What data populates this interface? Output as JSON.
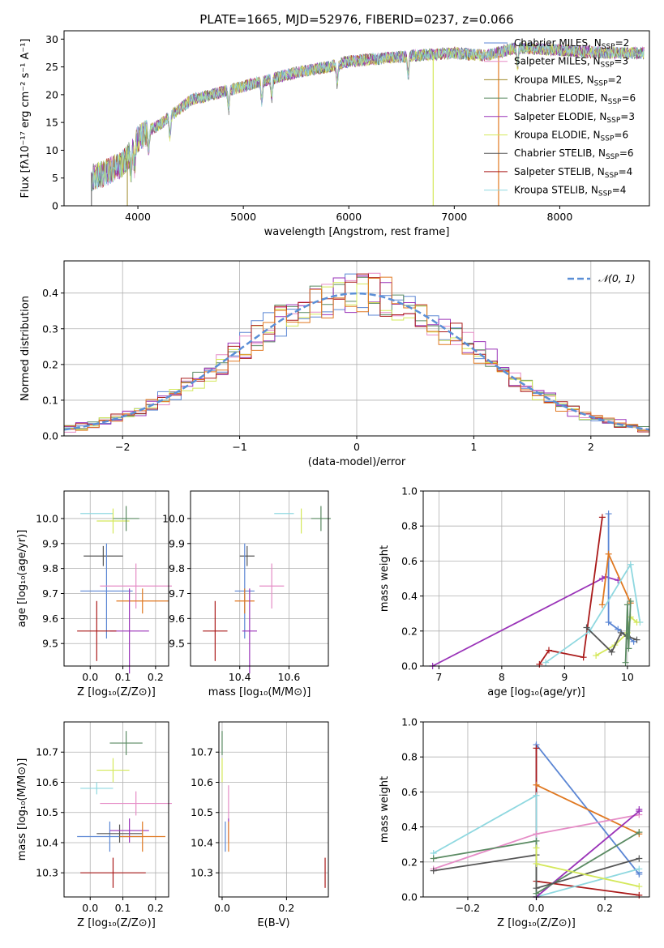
{
  "title": "PLATE=1665, MJD=52976, FIBERID=0237, z=0.066",
  "colors": {
    "chab_miles": "#5b86d4",
    "salp_miles": "#e58cc6",
    "krou_miles": "#a08a2a",
    "chab_elodie": "#5a8a62",
    "salp_elodie": "#9a33b8",
    "krou_elodie": "#d4e85a",
    "chab_stelib": "#555555",
    "salp_stelib": "#aa1a1a",
    "krou_stelib": "#8fd8e0",
    "orange": "#e07820",
    "normal": "#5b8fd6"
  },
  "chart_data": [
    {
      "id": "spectrum",
      "type": "line",
      "title": "PLATE=1665, MJD=52976, FIBERID=0237, z=0.066",
      "xlabel": "wavelength [Angstrom, rest frame]",
      "ylabel": "Flux [fλ10⁻¹⁷ erg cm⁻² s⁻¹ A⁻¹]",
      "xlim": [
        3300,
        8850
      ],
      "ylim": [
        0,
        31.5
      ],
      "xticks": [
        "4000",
        "5000",
        "6000",
        "7000",
        "8000"
      ],
      "yticks": [
        "0",
        "5",
        "10",
        "15",
        "20",
        "25",
        "30"
      ],
      "continuum": [
        [
          3560,
          5
        ],
        [
          3700,
          6
        ],
        [
          3850,
          7.5
        ],
        [
          3950,
          10
        ],
        [
          4000,
          12
        ],
        [
          4100,
          13.5
        ],
        [
          4200,
          14.5
        ],
        [
          4300,
          16
        ],
        [
          4500,
          19
        ],
        [
          4800,
          20.5
        ],
        [
          5000,
          21.5
        ],
        [
          5200,
          22.5
        ],
        [
          5500,
          24
        ],
        [
          5800,
          25
        ],
        [
          6000,
          26
        ],
        [
          6300,
          26.5
        ],
        [
          6600,
          27
        ],
        [
          7000,
          27.5
        ],
        [
          7300,
          27
        ],
        [
          7600,
          28.5
        ],
        [
          8000,
          28
        ],
        [
          8500,
          27.5
        ],
        [
          8800,
          27.5
        ]
      ],
      "absorption_lines": [
        3934,
        3969,
        4102,
        4304,
        4861,
        5175,
        5270,
        5890,
        6563,
        7600
      ],
      "drop_lines": [
        6800,
        7420
      ],
      "legend": [
        {
          "label": "Chabrier MILES, N",
          "sub": "SSP",
          "value": "=2",
          "color_key": "chab_miles"
        },
        {
          "label": "Salpeter MILES, N",
          "sub": "SSP",
          "value": "=3",
          "color_key": "salp_miles"
        },
        {
          "label": "Kroupa MILES, N",
          "sub": "SSP",
          "value": "=2",
          "color_key": "krou_miles"
        },
        {
          "label": "Chabrier ELODIE, N",
          "sub": "SSP",
          "value": "=6",
          "color_key": "chab_elodie"
        },
        {
          "label": "Salpeter ELODIE, N",
          "sub": "SSP",
          "value": "=3",
          "color_key": "salp_elodie"
        },
        {
          "label": "Kroupa ELODIE, N",
          "sub": "SSP",
          "value": "=6",
          "color_key": "krou_elodie"
        },
        {
          "label": "Chabrier STELIB, N",
          "sub": "SSP",
          "value": "=6",
          "color_key": "chab_stelib"
        },
        {
          "label": "Salpeter STELIB, N",
          "sub": "SSP",
          "value": "=4",
          "color_key": "salp_stelib"
        },
        {
          "label": "Kroupa STELIB, N",
          "sub": "SSP",
          "value": "=4",
          "color_key": "krou_stelib"
        }
      ]
    },
    {
      "id": "residuals",
      "type": "histogram",
      "xlabel": "(data-model)/error",
      "ylabel": "Normed distribution",
      "xlim": [
        -2.5,
        2.5
      ],
      "ylim": [
        0,
        0.49
      ],
      "xticks": [
        "−2",
        "−1",
        "0",
        "1",
        "2"
      ],
      "yticks": [
        "0.0",
        "0.1",
        "0.2",
        "0.3",
        "0.4"
      ],
      "bin_width": 0.1,
      "legend": {
        "label": "𝒩(0, 1)"
      },
      "series_colors": [
        "chab_miles",
        "salp_miles",
        "chab_elodie",
        "salp_elodie",
        "krou_elodie",
        "salp_stelib",
        "orange"
      ]
    },
    {
      "id": "age_vs_z",
      "type": "errorbar",
      "xlabel": "Z [log₁₀(Z/Z⊙)]",
      "ylabel": "age  [log₁₀(age/yr)]",
      "xlim": [
        -0.08,
        0.24
      ],
      "ylim": [
        9.41,
        10.11
      ],
      "xticks": [
        "0.0",
        "0.1",
        "0.2"
      ],
      "yticks": [
        "9.5",
        "9.6",
        "9.7",
        "9.8",
        "9.9",
        "10.0"
      ],
      "points": [
        {
          "color_key": "krou_stelib",
          "x": 0.02,
          "xerr": 0.05,
          "y": 10.02,
          "yerr": 0.0
        },
        {
          "color_key": "krou_elodie",
          "x": 0.07,
          "xerr": 0.05,
          "y": 9.99,
          "yerr": 0.05
        },
        {
          "color_key": "chab_elodie",
          "x": 0.11,
          "xerr": 0.04,
          "y": 10.0,
          "yerr": 0.05
        },
        {
          "color_key": "chab_stelib",
          "x": 0.04,
          "xerr": 0.06,
          "y": 9.85,
          "yerr": 0.04
        },
        {
          "color_key": "chab_miles",
          "x": 0.05,
          "xerr": 0.08,
          "y": 9.71,
          "yerr": 0.19
        },
        {
          "color_key": "salp_miles",
          "x": 0.14,
          "xerr": 0.11,
          "y": 9.73,
          "yerr": 0.09
        },
        {
          "color_key": "orange",
          "x": 0.16,
          "xerr": 0.08,
          "y": 9.67,
          "yerr": 0.05
        },
        {
          "color_key": "salp_elodie",
          "x": 0.12,
          "xerr": 0.06,
          "y": 9.55,
          "yerr": 0.17
        },
        {
          "color_key": "salp_stelib",
          "x": 0.02,
          "xerr": 0.06,
          "y": 9.55,
          "yerr": 0.12
        }
      ]
    },
    {
      "id": "age_vs_mass",
      "type": "errorbar",
      "xlabel": "mass [log₁₀(M/M⊙)]",
      "ylabel": "",
      "xlim": [
        10.2,
        10.76
      ],
      "ylim": [
        9.41,
        10.11
      ],
      "xticks": [
        "10.4",
        "10.6"
      ],
      "yticks": [
        "9.5",
        "9.6",
        "9.7",
        "9.8",
        "9.9",
        "10.0"
      ],
      "points": [
        {
          "color_key": "krou_stelib",
          "x": 10.58,
          "xerr": 0.04,
          "y": 10.02,
          "yerr": 0.0
        },
        {
          "color_key": "krou_elodie",
          "x": 10.65,
          "xerr": 0.0,
          "y": 9.99,
          "yerr": 0.05
        },
        {
          "color_key": "chab_elodie",
          "x": 10.73,
          "xerr": 0.04,
          "y": 10.0,
          "yerr": 0.05
        },
        {
          "color_key": "chab_stelib",
          "x": 10.43,
          "xerr": 0.03,
          "y": 9.85,
          "yerr": 0.04
        },
        {
          "color_key": "chab_miles",
          "x": 10.42,
          "xerr": 0.04,
          "y": 9.71,
          "yerr": 0.19
        },
        {
          "color_key": "salp_miles",
          "x": 10.53,
          "xerr": 0.05,
          "y": 9.73,
          "yerr": 0.09
        },
        {
          "color_key": "orange",
          "x": 10.42,
          "xerr": 0.04,
          "y": 9.67,
          "yerr": 0.05
        },
        {
          "color_key": "salp_elodie",
          "x": 10.44,
          "xerr": 0.03,
          "y": 9.55,
          "yerr": 0.17
        },
        {
          "color_key": "salp_stelib",
          "x": 10.3,
          "xerr": 0.05,
          "y": 9.55,
          "yerr": 0.12
        }
      ]
    },
    {
      "id": "weight_vs_age",
      "type": "line",
      "xlabel": "age  [log₁₀(age/yr)]",
      "ylabel": "mass weight",
      "xlim": [
        6.75,
        10.35
      ],
      "ylim": [
        0,
        1.0
      ],
      "xticks": [
        "7",
        "8",
        "9",
        "10"
      ],
      "yticks": [
        "0.0",
        "0.2",
        "0.4",
        "0.6",
        "0.8",
        "1.0"
      ],
      "series": [
        {
          "color_key": "salp_elodie",
          "x": [
            6.9,
            9.6,
            9.65,
            9.85
          ],
          "y": [
            0.0,
            0.5,
            0.51,
            0.49
          ]
        },
        {
          "color_key": "salp_stelib",
          "x": [
            8.6,
            8.75,
            9.3,
            9.6
          ],
          "y": [
            0.01,
            0.09,
            0.05,
            0.85
          ]
        },
        {
          "color_key": "chab_miles",
          "x": [
            9.7,
            9.7,
            9.85,
            10.1
          ],
          "y": [
            0.87,
            0.25,
            0.21,
            0.14
          ]
        },
        {
          "color_key": "orange",
          "x": [
            9.6,
            9.7,
            10.05
          ],
          "y": [
            0.35,
            0.64,
            0.36
          ]
        },
        {
          "color_key": "krou_stelib",
          "x": [
            8.7,
            9.4,
            10.05,
            10.2
          ],
          "y": [
            0.02,
            0.2,
            0.58,
            0.25
          ]
        },
        {
          "color_key": "krou_elodie",
          "x": [
            9.5,
            9.8,
            10.0,
            10.05,
            10.15
          ],
          "y": [
            0.06,
            0.12,
            0.19,
            0.28,
            0.25
          ]
        },
        {
          "color_key": "chab_stelib",
          "x": [
            9.35,
            9.75,
            9.9,
            10.0,
            10.15
          ],
          "y": [
            0.22,
            0.08,
            0.19,
            0.17,
            0.15
          ]
        },
        {
          "color_key": "chab_elodie",
          "x": [
            9.97,
            10.0,
            10.02,
            10.05
          ],
          "y": [
            0.02,
            0.35,
            0.1,
            0.37
          ]
        }
      ]
    },
    {
      "id": "mass_vs_z",
      "type": "errorbar",
      "xlabel": "Z [log₁₀(Z/Z⊙)]",
      "ylabel": "mass [log₁₀(M/M⊙)]",
      "xlim": [
        -0.08,
        0.24
      ],
      "ylim": [
        10.22,
        10.8
      ],
      "xticks": [
        "0.0",
        "0.1",
        "0.2"
      ],
      "yticks": [
        "10.3",
        "10.4",
        "10.5",
        "10.6",
        "10.7"
      ],
      "points": [
        {
          "color_key": "chab_elodie",
          "x": 0.11,
          "xerr": 0.05,
          "y": 10.73,
          "yerr": 0.04
        },
        {
          "color_key": "krou_elodie",
          "x": 0.07,
          "xerr": 0.05,
          "y": 10.64,
          "yerr": 0.04
        },
        {
          "color_key": "krou_stelib",
          "x": 0.02,
          "xerr": 0.05,
          "y": 10.58,
          "yerr": 0.02
        },
        {
          "color_key": "salp_miles",
          "x": 0.14,
          "xerr": 0.11,
          "y": 10.53,
          "yerr": 0.04
        },
        {
          "color_key": "chab_miles",
          "x": 0.06,
          "xerr": 0.1,
          "y": 10.42,
          "yerr": 0.05
        },
        {
          "color_key": "chab_stelib",
          "x": 0.09,
          "xerr": 0.07,
          "y": 10.43,
          "yerr": 0.03
        },
        {
          "color_key": "salp_elodie",
          "x": 0.12,
          "xerr": 0.06,
          "y": 10.44,
          "yerr": 0.04
        },
        {
          "color_key": "orange",
          "x": 0.16,
          "xerr": 0.07,
          "y": 10.42,
          "yerr": 0.05
        },
        {
          "color_key": "salp_stelib",
          "x": 0.07,
          "xerr": 0.1,
          "y": 10.3,
          "yerr": 0.05
        }
      ]
    },
    {
      "id": "mass_vs_ebv",
      "type": "errorbar",
      "xlabel": "E(B-V)",
      "ylabel": "",
      "xlim": [
        -0.01,
        0.33
      ],
      "ylim": [
        10.22,
        10.8
      ],
      "xticks": [
        "0.0",
        "0.2"
      ],
      "yticks": [
        "10.3",
        "10.4",
        "10.5",
        "10.6",
        "10.7"
      ],
      "points": [
        {
          "color_key": "chab_elodie",
          "x": 0.0,
          "xerr": 0.0,
          "y": 10.73,
          "yerr": 0.04
        },
        {
          "color_key": "krou_elodie",
          "x": 0.0,
          "xerr": 0.0,
          "y": 10.64,
          "yerr": 0.04
        },
        {
          "color_key": "salp_miles",
          "x": 0.02,
          "xerr": 0.0,
          "y": 10.53,
          "yerr": 0.06
        },
        {
          "color_key": "salp_elodie",
          "x": 0.02,
          "xerr": 0.0,
          "y": 10.44,
          "yerr": 0.04
        },
        {
          "color_key": "chab_miles",
          "x": 0.01,
          "xerr": 0.0,
          "y": 10.42,
          "yerr": 0.05
        },
        {
          "color_key": "orange",
          "x": 0.02,
          "xerr": 0.0,
          "y": 10.42,
          "yerr": 0.05
        },
        {
          "color_key": "salp_stelib",
          "x": 0.32,
          "xerr": 0.0,
          "y": 10.3,
          "yerr": 0.05
        }
      ]
    },
    {
      "id": "weight_vs_z",
      "type": "line",
      "xlabel": "Z [log₁₀(Z/Z⊙)]",
      "ylabel": "mass weight",
      "xlim": [
        -0.33,
        0.33
      ],
      "ylim": [
        0,
        1.0
      ],
      "xticks": [
        "−0.2",
        "0.0",
        "0.2"
      ],
      "yticks": [
        "0.0",
        "0.2",
        "0.4",
        "0.6",
        "0.8",
        "1.0"
      ],
      "series": [
        {
          "color_key": "chab_miles",
          "x": [
            0.0,
            0.0,
            0.3,
            0.3
          ],
          "y": [
            0.0,
            0.87,
            0.13,
            0.14
          ]
        },
        {
          "color_key": "salp_stelib",
          "x": [
            0.0,
            0.0,
            0.0,
            0.3
          ],
          "y": [
            0.0,
            0.85,
            0.09,
            0.01
          ]
        },
        {
          "color_key": "orange",
          "x": [
            0.0,
            0.3,
            0.3
          ],
          "y": [
            0.64,
            0.36,
            0.37
          ]
        },
        {
          "color_key": "krou_stelib",
          "x": [
            -0.3,
            0.0,
            0.0,
            0.3
          ],
          "y": [
            0.25,
            0.58,
            0.0,
            0.16
          ]
        },
        {
          "color_key": "salp_miles",
          "x": [
            -0.3,
            0.0,
            0.3
          ],
          "y": [
            0.16,
            0.36,
            0.47
          ]
        },
        {
          "color_key": "salp_elodie",
          "x": [
            0.0,
            0.3,
            0.3
          ],
          "y": [
            0.0,
            0.49,
            0.5
          ]
        },
        {
          "color_key": "chab_elodie",
          "x": [
            -0.3,
            0.0,
            0.0,
            0.3
          ],
          "y": [
            0.22,
            0.32,
            0.02,
            0.37
          ]
        },
        {
          "color_key": "chab_stelib",
          "x": [
            -0.3,
            0.0,
            0.0,
            0.3
          ],
          "y": [
            0.15,
            0.24,
            0.05,
            0.22
          ]
        },
        {
          "color_key": "krou_elodie",
          "x": [
            0.0,
            0.0,
            0.3
          ],
          "y": [
            0.28,
            0.19,
            0.06
          ]
        }
      ]
    }
  ]
}
